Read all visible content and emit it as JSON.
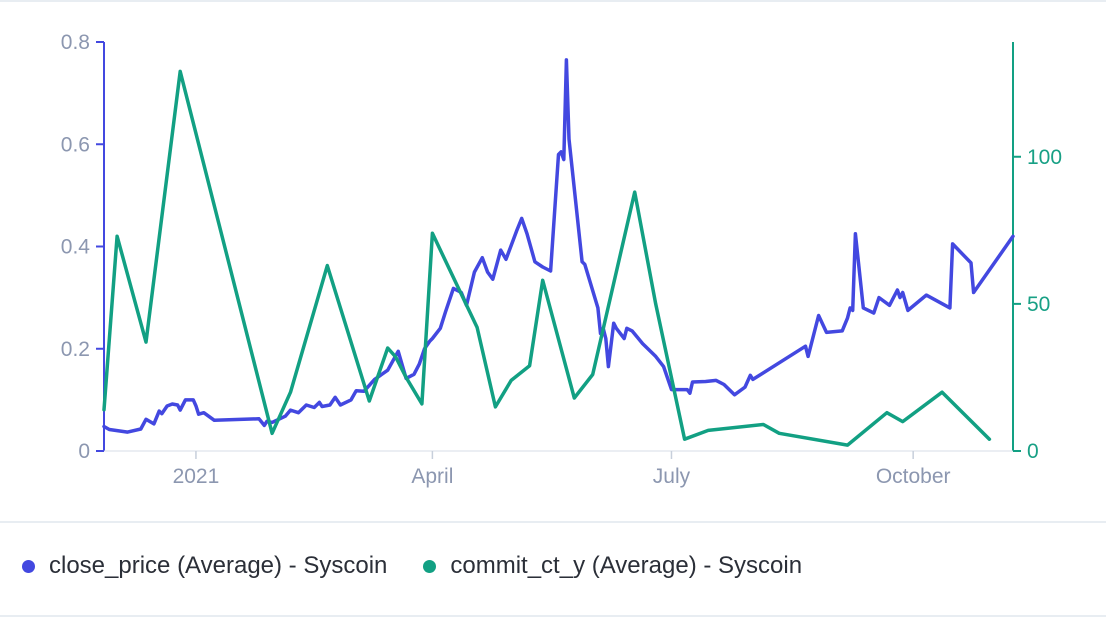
{
  "colors": {
    "series1": "#4348e0",
    "series2": "#12a083",
    "axis_left": "#4348e0",
    "axis_right": "#12a083",
    "tick_text": "#8c97b0"
  },
  "chart_data": {
    "type": "line",
    "x_axis": {
      "type": "date",
      "range": [
        "2020-11-27",
        "2021-11-08"
      ],
      "ticks": [
        {
          "date": "2021-01-01",
          "label": "2021"
        },
        {
          "date": "2021-04-01",
          "label": "April"
        },
        {
          "date": "2021-07-01",
          "label": "July"
        },
        {
          "date": "2021-10-01",
          "label": "October"
        }
      ]
    },
    "y_axis_left": {
      "range": [
        0,
        0.8
      ],
      "ticks": [
        0,
        0.2,
        0.4,
        0.6,
        0.8
      ],
      "tick_labels": [
        "0",
        "0.2",
        "0.4",
        "0.6",
        "0.8"
      ]
    },
    "y_axis_right": {
      "range": [
        0,
        139
      ],
      "ticks": [
        0,
        50,
        100
      ],
      "tick_labels": [
        "0",
        "50",
        "100"
      ]
    },
    "series": [
      {
        "name": "close_price (Average) - Syscoin",
        "axis": "left",
        "points": [
          [
            "2020-11-27",
            0.048
          ],
          [
            "2020-11-29",
            0.042
          ],
          [
            "2020-12-06",
            0.037
          ],
          [
            "2020-12-11",
            0.043
          ],
          [
            "2020-12-13",
            0.062
          ],
          [
            "2020-12-16",
            0.053
          ],
          [
            "2020-12-18",
            0.078
          ],
          [
            "2020-12-19",
            0.073
          ],
          [
            "2020-12-21",
            0.088
          ],
          [
            "2020-12-23",
            0.092
          ],
          [
            "2020-12-25",
            0.09
          ],
          [
            "2020-12-26",
            0.08
          ],
          [
            "2020-12-28",
            0.1
          ],
          [
            "2020-12-31",
            0.1
          ],
          [
            "2021-01-01",
            0.088
          ],
          [
            "2021-01-02",
            0.072
          ],
          [
            "2021-01-04",
            0.075
          ],
          [
            "2021-01-08",
            0.06
          ],
          [
            "2021-01-25",
            0.063
          ],
          [
            "2021-01-27",
            0.05
          ],
          [
            "2021-01-28",
            0.058
          ],
          [
            "2021-01-30",
            0.056
          ],
          [
            "2021-02-04",
            0.068
          ],
          [
            "2021-02-06",
            0.08
          ],
          [
            "2021-02-09",
            0.075
          ],
          [
            "2021-02-12",
            0.09
          ],
          [
            "2021-02-15",
            0.085
          ],
          [
            "2021-02-17",
            0.095
          ],
          [
            "2021-02-18",
            0.087
          ],
          [
            "2021-02-21",
            0.09
          ],
          [
            "2021-02-23",
            0.105
          ],
          [
            "2021-02-25",
            0.09
          ],
          [
            "2021-03-01",
            0.1
          ],
          [
            "2021-03-03",
            0.118
          ],
          [
            "2021-03-06",
            0.117
          ],
          [
            "2021-03-10",
            0.14
          ],
          [
            "2021-03-15",
            0.158
          ],
          [
            "2021-03-19",
            0.195
          ],
          [
            "2021-03-22",
            0.142
          ],
          [
            "2021-03-25",
            0.15
          ],
          [
            "2021-03-27",
            0.17
          ],
          [
            "2021-03-29",
            0.2
          ],
          [
            "2021-03-31",
            0.215
          ],
          [
            "2021-04-01",
            0.22
          ],
          [
            "2021-04-04",
            0.24
          ],
          [
            "2021-04-06",
            0.272
          ],
          [
            "2021-04-09",
            0.318
          ],
          [
            "2021-04-12",
            0.31
          ],
          [
            "2021-04-14",
            0.285
          ],
          [
            "2021-04-17",
            0.35
          ],
          [
            "2021-04-20",
            0.378
          ],
          [
            "2021-04-22",
            0.35
          ],
          [
            "2021-04-24",
            0.336
          ],
          [
            "2021-04-27",
            0.393
          ],
          [
            "2021-04-29",
            0.375
          ],
          [
            "2021-05-03",
            0.43
          ],
          [
            "2021-05-05",
            0.455
          ],
          [
            "2021-05-07",
            0.425
          ],
          [
            "2021-05-10",
            0.37
          ],
          [
            "2021-05-13",
            0.36
          ],
          [
            "2021-05-16",
            0.352
          ],
          [
            "2021-05-19",
            0.58
          ],
          [
            "2021-05-20",
            0.585
          ],
          [
            "2021-05-21",
            0.57
          ],
          [
            "2021-05-22",
            0.765
          ],
          [
            "2021-05-23",
            0.61
          ],
          [
            "2021-05-28",
            0.37
          ],
          [
            "2021-05-29",
            0.365
          ],
          [
            "2021-06-03",
            0.28
          ],
          [
            "2021-06-04",
            0.23
          ],
          [
            "2021-06-05",
            0.24
          ],
          [
            "2021-06-06",
            0.22
          ],
          [
            "2021-06-07",
            0.165
          ],
          [
            "2021-06-09",
            0.25
          ],
          [
            "2021-06-10",
            0.24
          ],
          [
            "2021-06-13",
            0.22
          ],
          [
            "2021-06-14",
            0.24
          ],
          [
            "2021-06-16",
            0.235
          ],
          [
            "2021-06-20",
            0.21
          ],
          [
            "2021-06-25",
            0.185
          ],
          [
            "2021-06-28",
            0.165
          ],
          [
            "2021-07-01",
            0.12
          ],
          [
            "2021-07-07",
            0.12
          ],
          [
            "2021-07-08",
            0.113
          ],
          [
            "2021-07-09",
            0.135
          ],
          [
            "2021-07-14",
            0.136
          ],
          [
            "2021-07-18",
            0.138
          ],
          [
            "2021-07-21",
            0.13
          ],
          [
            "2021-07-25",
            0.11
          ],
          [
            "2021-07-29",
            0.125
          ],
          [
            "2021-07-31",
            0.148
          ],
          [
            "2021-08-01",
            0.14
          ],
          [
            "2021-08-21",
            0.205
          ],
          [
            "2021-08-22",
            0.185
          ],
          [
            "2021-08-26",
            0.265
          ],
          [
            "2021-08-29",
            0.232
          ],
          [
            "2021-09-04",
            0.235
          ],
          [
            "2021-09-06",
            0.26
          ],
          [
            "2021-09-07",
            0.28
          ],
          [
            "2021-09-08",
            0.275
          ],
          [
            "2021-09-09",
            0.425
          ],
          [
            "2021-09-12",
            0.28
          ],
          [
            "2021-09-16",
            0.27
          ],
          [
            "2021-09-18",
            0.3
          ],
          [
            "2021-09-22",
            0.285
          ],
          [
            "2021-09-25",
            0.315
          ],
          [
            "2021-09-26",
            0.3
          ],
          [
            "2021-09-27",
            0.31
          ],
          [
            "2021-09-29",
            0.275
          ],
          [
            "2021-10-06",
            0.305
          ],
          [
            "2021-10-15",
            0.28
          ],
          [
            "2021-10-16",
            0.405
          ],
          [
            "2021-10-23",
            0.368
          ],
          [
            "2021-10-24",
            0.31
          ],
          [
            "2021-11-08",
            0.42
          ]
        ]
      },
      {
        "name": "commit_ct_y (Average) - Syscoin",
        "axis": "right",
        "points": [
          [
            "2020-11-27",
            14
          ],
          [
            "2020-12-02",
            73
          ],
          [
            "2020-12-13",
            37
          ],
          [
            "2020-12-26",
            129
          ],
          [
            "2021-01-30",
            6
          ],
          [
            "2021-02-06",
            20
          ],
          [
            "2021-02-20",
            63
          ],
          [
            "2021-03-08",
            17
          ],
          [
            "2021-03-15",
            35
          ],
          [
            "2021-03-18",
            32
          ],
          [
            "2021-03-22",
            25
          ],
          [
            "2021-03-28",
            16
          ],
          [
            "2021-04-01",
            74
          ],
          [
            "2021-04-18",
            42
          ],
          [
            "2021-04-25",
            15
          ],
          [
            "2021-05-01",
            24
          ],
          [
            "2021-05-08",
            29
          ],
          [
            "2021-05-13",
            58
          ],
          [
            "2021-05-25",
            18
          ],
          [
            "2021-06-01",
            26
          ],
          [
            "2021-06-17",
            88
          ],
          [
            "2021-06-25",
            50
          ],
          [
            "2021-07-06",
            4
          ],
          [
            "2021-07-15",
            7
          ],
          [
            "2021-08-05",
            9
          ],
          [
            "2021-08-11",
            6
          ],
          [
            "2021-09-06",
            2
          ],
          [
            "2021-09-21",
            13
          ],
          [
            "2021-09-27",
            10
          ],
          [
            "2021-10-12",
            20
          ],
          [
            "2021-10-30",
            4
          ]
        ]
      }
    ]
  },
  "legend": [
    {
      "label": "close_price (Average) - Syscoin"
    },
    {
      "label": "commit_ct_y (Average) - Syscoin"
    }
  ]
}
